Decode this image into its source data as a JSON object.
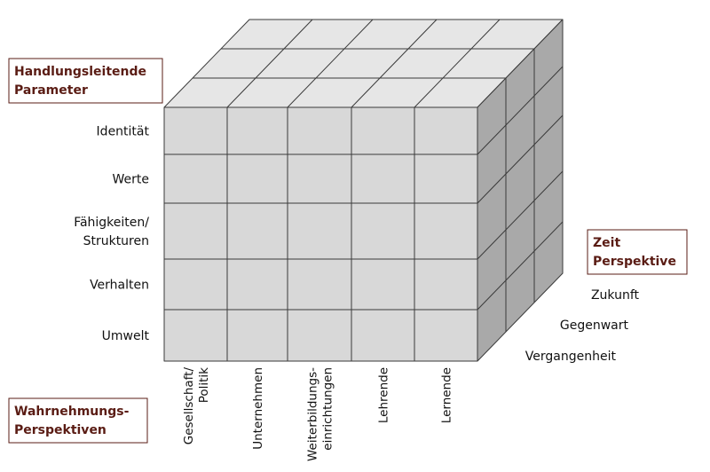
{
  "boxes": {
    "parameters": [
      "Handlungsleitende",
      "Parameter"
    ],
    "time": [
      "Zeit",
      "Perspektive"
    ],
    "perception": [
      "Wahrnehmungs-",
      "Perspektiven"
    ]
  },
  "rows": [
    [
      "Identität"
    ],
    [
      "Werte"
    ],
    [
      "Fähigkeiten/",
      "Strukturen"
    ],
    [
      "Verhalten"
    ],
    [
      "Umwelt"
    ]
  ],
  "columns": [
    [
      "Gesellschaft/",
      "Politik"
    ],
    [
      "Unternehmen"
    ],
    [
      "Weiterbildungs-",
      "einrichtungen"
    ],
    [
      "Lehrende"
    ],
    [
      "Lernende"
    ]
  ],
  "time_layers": [
    "Zukunft",
    "Gegenwart",
    "Vergangenheit"
  ],
  "colors": {
    "front": "#d8d8d8",
    "top": "#e6e6e6",
    "side": "#a9a9a9",
    "grid": "#3a3a3a",
    "box_border": "#5a1c14",
    "box_text": "#5a1c14"
  }
}
